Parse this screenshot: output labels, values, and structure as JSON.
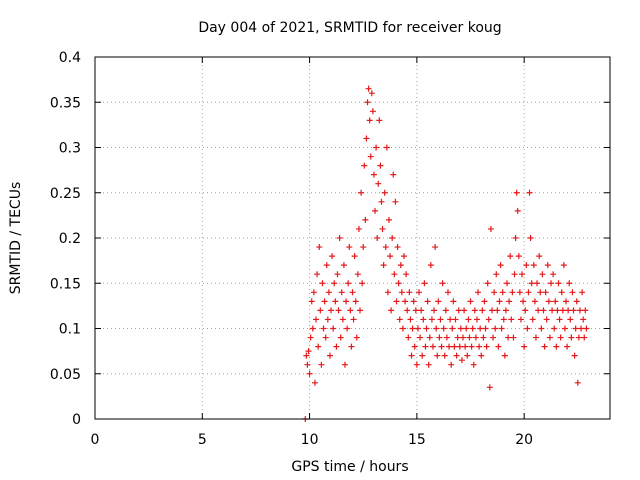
{
  "chart_data": {
    "type": "scatter",
    "title": "Day 004 of 2021, SRMTID for receiver koug",
    "xlabel": "GPS time / hours",
    "ylabel": "SRMTID / TECUs",
    "xlim": [
      0,
      24
    ],
    "ylim": [
      0,
      0.4
    ],
    "xticks": [
      0,
      5,
      10,
      15,
      20
    ],
    "xtick_labels": [
      "0",
      "5",
      "10",
      "15",
      "20"
    ],
    "yticks": [
      0,
      0.05,
      0.1,
      0.15,
      0.2,
      0.25,
      0.3,
      0.35,
      0.4
    ],
    "ytick_labels": [
      "0",
      "0.05",
      "0.1",
      "0.15",
      "0.2",
      "0.25",
      "0.3",
      "0.35",
      "0.4"
    ],
    "grid": true,
    "marker": "plus",
    "colors": {
      "series": "#e41a1c",
      "grid": "#a0a0a0",
      "axis": "#000000"
    },
    "series": [
      {
        "name": "SRMTID",
        "points": [
          [
            9.8,
            0.0
          ],
          [
            9.85,
            0.07
          ],
          [
            9.9,
            0.06
          ],
          [
            9.95,
            0.075
          ],
          [
            10.0,
            0.05
          ],
          [
            10.05,
            0.09
          ],
          [
            10.1,
            0.13
          ],
          [
            10.15,
            0.1
          ],
          [
            10.2,
            0.14
          ],
          [
            10.25,
            0.04
          ],
          [
            10.3,
            0.11
          ],
          [
            10.35,
            0.16
          ],
          [
            10.4,
            0.08
          ],
          [
            10.45,
            0.19
          ],
          [
            10.5,
            0.12
          ],
          [
            10.55,
            0.06
          ],
          [
            10.6,
            0.15
          ],
          [
            10.65,
            0.1
          ],
          [
            10.7,
            0.13
          ],
          [
            10.75,
            0.09
          ],
          [
            10.8,
            0.17
          ],
          [
            10.85,
            0.11
          ],
          [
            10.9,
            0.14
          ],
          [
            10.95,
            0.07
          ],
          [
            11.0,
            0.12
          ],
          [
            11.05,
            0.18
          ],
          [
            11.1,
            0.1
          ],
          [
            11.15,
            0.15
          ],
          [
            11.2,
            0.13
          ],
          [
            11.25,
            0.08
          ],
          [
            11.3,
            0.16
          ],
          [
            11.35,
            0.12
          ],
          [
            11.4,
            0.2
          ],
          [
            11.45,
            0.09
          ],
          [
            11.5,
            0.14
          ],
          [
            11.55,
            0.11
          ],
          [
            11.6,
            0.17
          ],
          [
            11.65,
            0.06
          ],
          [
            11.7,
            0.13
          ],
          [
            11.75,
            0.1
          ],
          [
            11.8,
            0.15
          ],
          [
            11.85,
            0.19
          ],
          [
            11.9,
            0.12
          ],
          [
            11.95,
            0.08
          ],
          [
            12.0,
            0.14
          ],
          [
            12.05,
            0.11
          ],
          [
            12.1,
            0.18
          ],
          [
            12.15,
            0.13
          ],
          [
            12.2,
            0.09
          ],
          [
            12.25,
            0.16
          ],
          [
            12.3,
            0.21
          ],
          [
            12.35,
            0.12
          ],
          [
            12.4,
            0.25
          ],
          [
            12.45,
            0.15
          ],
          [
            12.5,
            0.19
          ],
          [
            12.55,
            0.28
          ],
          [
            12.6,
            0.22
          ],
          [
            12.65,
            0.31
          ],
          [
            12.7,
            0.35
          ],
          [
            12.75,
            0.365
          ],
          [
            12.8,
            0.33
          ],
          [
            12.85,
            0.29
          ],
          [
            12.9,
            0.36
          ],
          [
            12.95,
            0.34
          ],
          [
            13.0,
            0.27
          ],
          [
            13.05,
            0.23
          ],
          [
            13.1,
            0.3
          ],
          [
            13.15,
            0.2
          ],
          [
            13.2,
            0.26
          ],
          [
            13.25,
            0.33
          ],
          [
            13.3,
            0.28
          ],
          [
            13.35,
            0.24
          ],
          [
            13.4,
            0.21
          ],
          [
            13.45,
            0.17
          ],
          [
            13.5,
            0.25
          ],
          [
            13.55,
            0.19
          ],
          [
            13.6,
            0.3
          ],
          [
            13.65,
            0.14
          ],
          [
            13.7,
            0.22
          ],
          [
            13.75,
            0.18
          ],
          [
            13.8,
            0.12
          ],
          [
            13.85,
            0.2
          ],
          [
            13.9,
            0.27
          ],
          [
            13.95,
            0.16
          ],
          [
            14.0,
            0.24
          ],
          [
            14.05,
            0.13
          ],
          [
            14.1,
            0.19
          ],
          [
            14.15,
            0.15
          ],
          [
            14.2,
            0.11
          ],
          [
            14.25,
            0.17
          ],
          [
            14.3,
            0.14
          ],
          [
            14.35,
            0.1
          ],
          [
            14.4,
            0.18
          ],
          [
            14.45,
            0.13
          ],
          [
            14.5,
            0.16
          ],
          [
            14.55,
            0.12
          ],
          [
            14.6,
            0.09
          ],
          [
            14.65,
            0.14
          ],
          [
            14.7,
            0.11
          ],
          [
            14.75,
            0.07
          ],
          [
            14.8,
            0.1
          ],
          [
            14.85,
            0.13
          ],
          [
            14.9,
            0.08
          ],
          [
            14.95,
            0.12
          ],
          [
            15.0,
            0.06
          ],
          [
            15.05,
            0.1
          ],
          [
            15.1,
            0.14
          ],
          [
            15.15,
            0.09
          ],
          [
            15.2,
            0.12
          ],
          [
            15.25,
            0.07
          ],
          [
            15.3,
            0.11
          ],
          [
            15.35,
            0.15
          ],
          [
            15.4,
            0.08
          ],
          [
            15.45,
            0.1
          ],
          [
            15.5,
            0.13
          ],
          [
            15.55,
            0.06
          ],
          [
            15.6,
            0.09
          ],
          [
            15.65,
            0.17
          ],
          [
            15.7,
            0.11
          ],
          [
            15.75,
            0.08
          ],
          [
            15.8,
            0.12
          ],
          [
            15.85,
            0.19
          ],
          [
            15.9,
            0.1
          ],
          [
            15.95,
            0.07
          ],
          [
            16.0,
            0.13
          ],
          [
            16.05,
            0.09
          ],
          [
            16.1,
            0.11
          ],
          [
            16.15,
            0.08
          ],
          [
            16.2,
            0.15
          ],
          [
            16.25,
            0.1
          ],
          [
            16.3,
            0.07
          ],
          [
            16.35,
            0.12
          ],
          [
            16.4,
            0.09
          ],
          [
            16.45,
            0.14
          ],
          [
            16.5,
            0.08
          ],
          [
            16.55,
            0.11
          ],
          [
            16.6,
            0.06
          ],
          [
            16.65,
            0.1
          ],
          [
            16.7,
            0.13
          ],
          [
            16.75,
            0.08
          ],
          [
            16.8,
            0.11
          ],
          [
            16.85,
            0.07
          ],
          [
            16.9,
            0.09
          ],
          [
            16.95,
            0.12
          ],
          [
            17.0,
            0.08
          ],
          [
            17.05,
            0.1
          ],
          [
            17.1,
            0.065
          ],
          [
            17.15,
            0.09
          ],
          [
            17.2,
            0.12
          ],
          [
            17.25,
            0.08
          ],
          [
            17.3,
            0.1
          ],
          [
            17.35,
            0.07
          ],
          [
            17.4,
            0.11
          ],
          [
            17.45,
            0.09
          ],
          [
            17.5,
            0.13
          ],
          [
            17.55,
            0.08
          ],
          [
            17.6,
            0.1
          ],
          [
            17.65,
            0.06
          ],
          [
            17.7,
            0.12
          ],
          [
            17.75,
            0.09
          ],
          [
            17.8,
            0.11
          ],
          [
            17.85,
            0.14
          ],
          [
            17.9,
            0.08
          ],
          [
            17.95,
            0.1
          ],
          [
            18.0,
            0.07
          ],
          [
            18.05,
            0.12
          ],
          [
            18.1,
            0.09
          ],
          [
            18.15,
            0.13
          ],
          [
            18.2,
            0.1
          ],
          [
            18.25,
            0.08
          ],
          [
            18.3,
            0.15
          ],
          [
            18.35,
            0.11
          ],
          [
            18.4,
            0.035
          ],
          [
            18.45,
            0.21
          ],
          [
            18.5,
            0.12
          ],
          [
            18.55,
            0.09
          ],
          [
            18.6,
            0.14
          ],
          [
            18.65,
            0.1
          ],
          [
            18.7,
            0.16
          ],
          [
            18.75,
            0.12
          ],
          [
            18.8,
            0.08
          ],
          [
            18.85,
            0.13
          ],
          [
            18.9,
            0.17
          ],
          [
            18.95,
            0.1
          ],
          [
            19.0,
            0.14
          ],
          [
            19.05,
            0.11
          ],
          [
            19.1,
            0.07
          ],
          [
            19.15,
            0.12
          ],
          [
            19.2,
            0.15
          ],
          [
            19.25,
            0.09
          ],
          [
            19.3,
            0.13
          ],
          [
            19.35,
            0.18
          ],
          [
            19.4,
            0.11
          ],
          [
            19.45,
            0.14
          ],
          [
            19.5,
            0.09
          ],
          [
            19.55,
            0.16
          ],
          [
            19.6,
            0.2
          ],
          [
            19.65,
            0.25
          ],
          [
            19.7,
            0.23
          ],
          [
            19.75,
            0.18
          ],
          [
            19.8,
            0.14
          ],
          [
            19.85,
            0.11
          ],
          [
            19.9,
            0.16
          ],
          [
            19.95,
            0.13
          ],
          [
            20.0,
            0.08
          ],
          [
            20.05,
            0.12
          ],
          [
            20.1,
            0.17
          ],
          [
            20.15,
            0.1
          ],
          [
            20.2,
            0.14
          ],
          [
            20.25,
            0.25
          ],
          [
            20.3,
            0.2
          ],
          [
            20.35,
            0.15
          ],
          [
            20.4,
            0.11
          ],
          [
            20.45,
            0.17
          ],
          [
            20.5,
            0.13
          ],
          [
            20.55,
            0.09
          ],
          [
            20.6,
            0.15
          ],
          [
            20.65,
            0.12
          ],
          [
            20.7,
            0.18
          ],
          [
            20.75,
            0.14
          ],
          [
            20.8,
            0.1
          ],
          [
            20.85,
            0.16
          ],
          [
            20.9,
            0.12
          ],
          [
            20.95,
            0.08
          ],
          [
            21.0,
            0.14
          ],
          [
            21.05,
            0.11
          ],
          [
            21.1,
            0.17
          ],
          [
            21.15,
            0.13
          ],
          [
            21.2,
            0.09
          ],
          [
            21.25,
            0.15
          ],
          [
            21.3,
            0.12
          ],
          [
            21.35,
            0.16
          ],
          [
            21.4,
            0.1
          ],
          [
            21.45,
            0.13
          ],
          [
            21.5,
            0.08
          ],
          [
            21.55,
            0.12
          ],
          [
            21.6,
            0.15
          ],
          [
            21.65,
            0.11
          ],
          [
            21.7,
            0.09
          ],
          [
            21.75,
            0.14
          ],
          [
            21.8,
            0.12
          ],
          [
            21.85,
            0.17
          ],
          [
            21.9,
            0.1
          ],
          [
            21.95,
            0.13
          ],
          [
            22.0,
            0.08
          ],
          [
            22.05,
            0.12
          ],
          [
            22.1,
            0.15
          ],
          [
            22.15,
            0.11
          ],
          [
            22.2,
            0.09
          ],
          [
            22.25,
            0.14
          ],
          [
            22.3,
            0.12
          ],
          [
            22.35,
            0.07
          ],
          [
            22.4,
            0.1
          ],
          [
            22.45,
            0.13
          ],
          [
            22.5,
            0.04
          ],
          [
            22.55,
            0.09
          ],
          [
            22.6,
            0.12
          ],
          [
            22.65,
            0.1
          ],
          [
            22.7,
            0.14
          ],
          [
            22.75,
            0.11
          ],
          [
            22.8,
            0.09
          ],
          [
            22.85,
            0.12
          ],
          [
            22.9,
            0.1
          ]
        ]
      }
    ]
  }
}
